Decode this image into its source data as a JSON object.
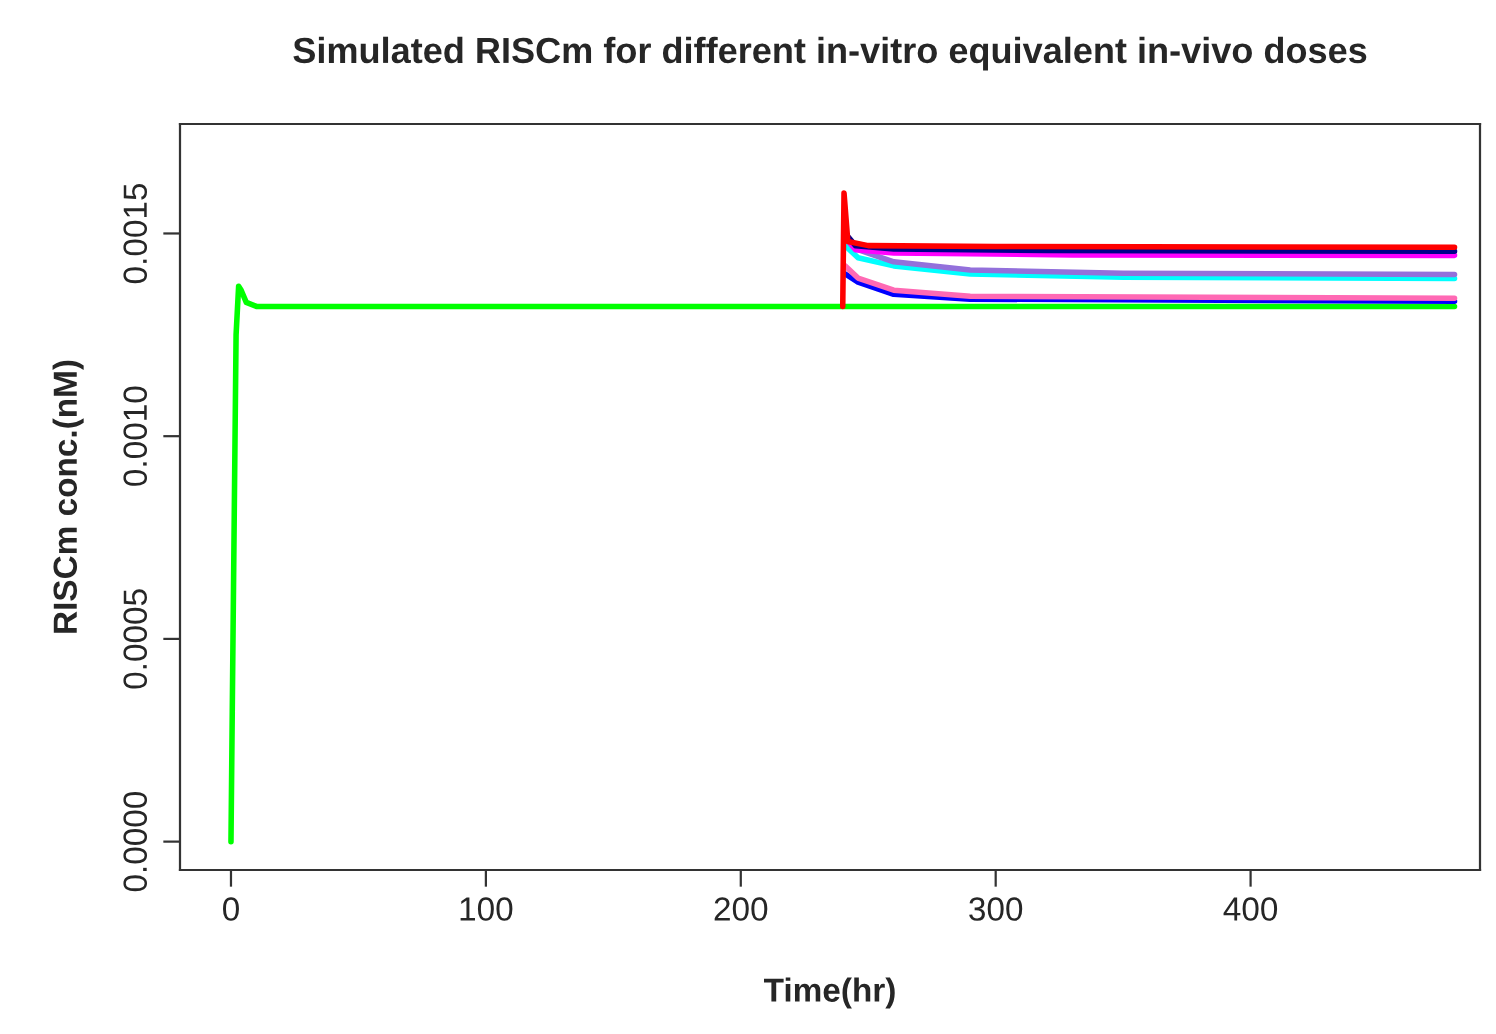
{
  "chart_data": {
    "type": "line",
    "title": "Simulated RISCm for different in-vitro equivalent in-vivo doses",
    "xlabel": "Time(hr)",
    "ylabel": "RISCm conc.(nM)",
    "series": [
      {
        "color": "#00ff00",
        "x": [
          0,
          0.5,
          1,
          2,
          3,
          4,
          6,
          10,
          480
        ],
        "values": [
          0,
          0.00032,
          0.00063,
          0.00125,
          0.00137,
          0.00136,
          0.00133,
          0.00132,
          0.00132
        ]
      },
      {
        "color": "#0000ff",
        "x": [
          241,
          246,
          260,
          290,
          480
        ],
        "values": [
          0.0014,
          0.00138,
          0.00135,
          0.001338,
          0.001333
        ]
      },
      {
        "color": "#ff69b4",
        "x": [
          241,
          246,
          260,
          290,
          480
        ],
        "values": [
          0.00142,
          0.00139,
          0.00136,
          0.001345,
          0.00134
        ]
      },
      {
        "color": "#00ffff",
        "x": [
          241,
          246,
          260,
          290,
          350,
          480
        ],
        "values": [
          0.00147,
          0.00144,
          0.00142,
          0.0014,
          0.001392,
          0.001389
        ]
      },
      {
        "color": "#9370db",
        "x": [
          241,
          246,
          260,
          290,
          350,
          480
        ],
        "values": [
          0.00149,
          0.00146,
          0.00143,
          0.00141,
          0.001402,
          0.001399
        ]
      },
      {
        "color": "#ff00ff",
        "x": [
          241,
          245,
          260,
          330,
          480
        ],
        "values": [
          0.00149,
          0.00146,
          0.001452,
          0.001447,
          0.001446
        ]
      },
      {
        "color": "#00008b",
        "x": [
          241,
          245,
          260,
          320,
          480
        ],
        "values": [
          0.0015,
          0.00147,
          0.001462,
          0.001458,
          0.001456
        ]
      },
      {
        "color": "#ff0000",
        "x": [
          240,
          240.5,
          242,
          250,
          300,
          480
        ],
        "values": [
          0.00132,
          0.0016,
          0.00148,
          0.00147,
          0.001468,
          0.001466
        ]
      }
    ],
    "xlim": [
      -20,
      490
    ],
    "ylim": [
      -7e-05,
      0.00177
    ],
    "xticks": [
      0,
      100,
      200,
      300,
      400
    ],
    "yticks": [
      {
        "value": 0,
        "label": "0.0000"
      },
      {
        "value": 0.0005,
        "label": "0.0005"
      },
      {
        "value": 0.001,
        "label": "0.0010"
      },
      {
        "value": 0.0015,
        "label": "0.0015"
      }
    ],
    "grid": false,
    "legend": false,
    "line_style": "solid",
    "marker": "none"
  }
}
